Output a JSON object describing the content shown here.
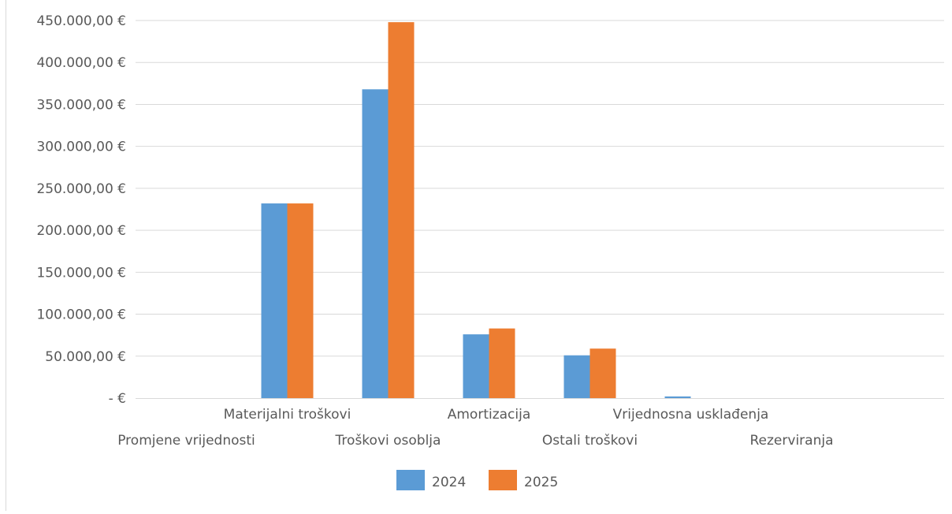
{
  "chart_data": {
    "type": "bar",
    "title": "",
    "xlabel": "",
    "ylabel": "",
    "categories": [
      "Promjene vrijednosti",
      "Materijalni troškovi",
      "Troškovi osoblja",
      "Amortizacija",
      "Ostali troškovi",
      "Vrijednosna usklađenja",
      "Rezerviranja"
    ],
    "series": [
      {
        "name": "2024",
        "color": "#5B9BD5",
        "values": [
          0,
          232000,
          368000,
          76000,
          51000,
          2000,
          0
        ]
      },
      {
        "name": "2025",
        "color": "#ED7D31",
        "values": [
          0,
          232000,
          448000,
          83000,
          59000,
          0,
          0
        ]
      }
    ],
    "ylim": [
      0,
      450000
    ],
    "ytick_labels": [
      "-  €",
      "50.000,00 €",
      "100.000,00 €",
      "150.000,00 €",
      "200.000,00 €",
      "250.000,00 €",
      "300.000,00 €",
      "350.000,00 €",
      "400.000,00 €",
      "450.000,00 €"
    ],
    "grid": true,
    "legend_position": "bottom",
    "gridline_color": "#d9d9d9",
    "text_color": "#595959"
  }
}
